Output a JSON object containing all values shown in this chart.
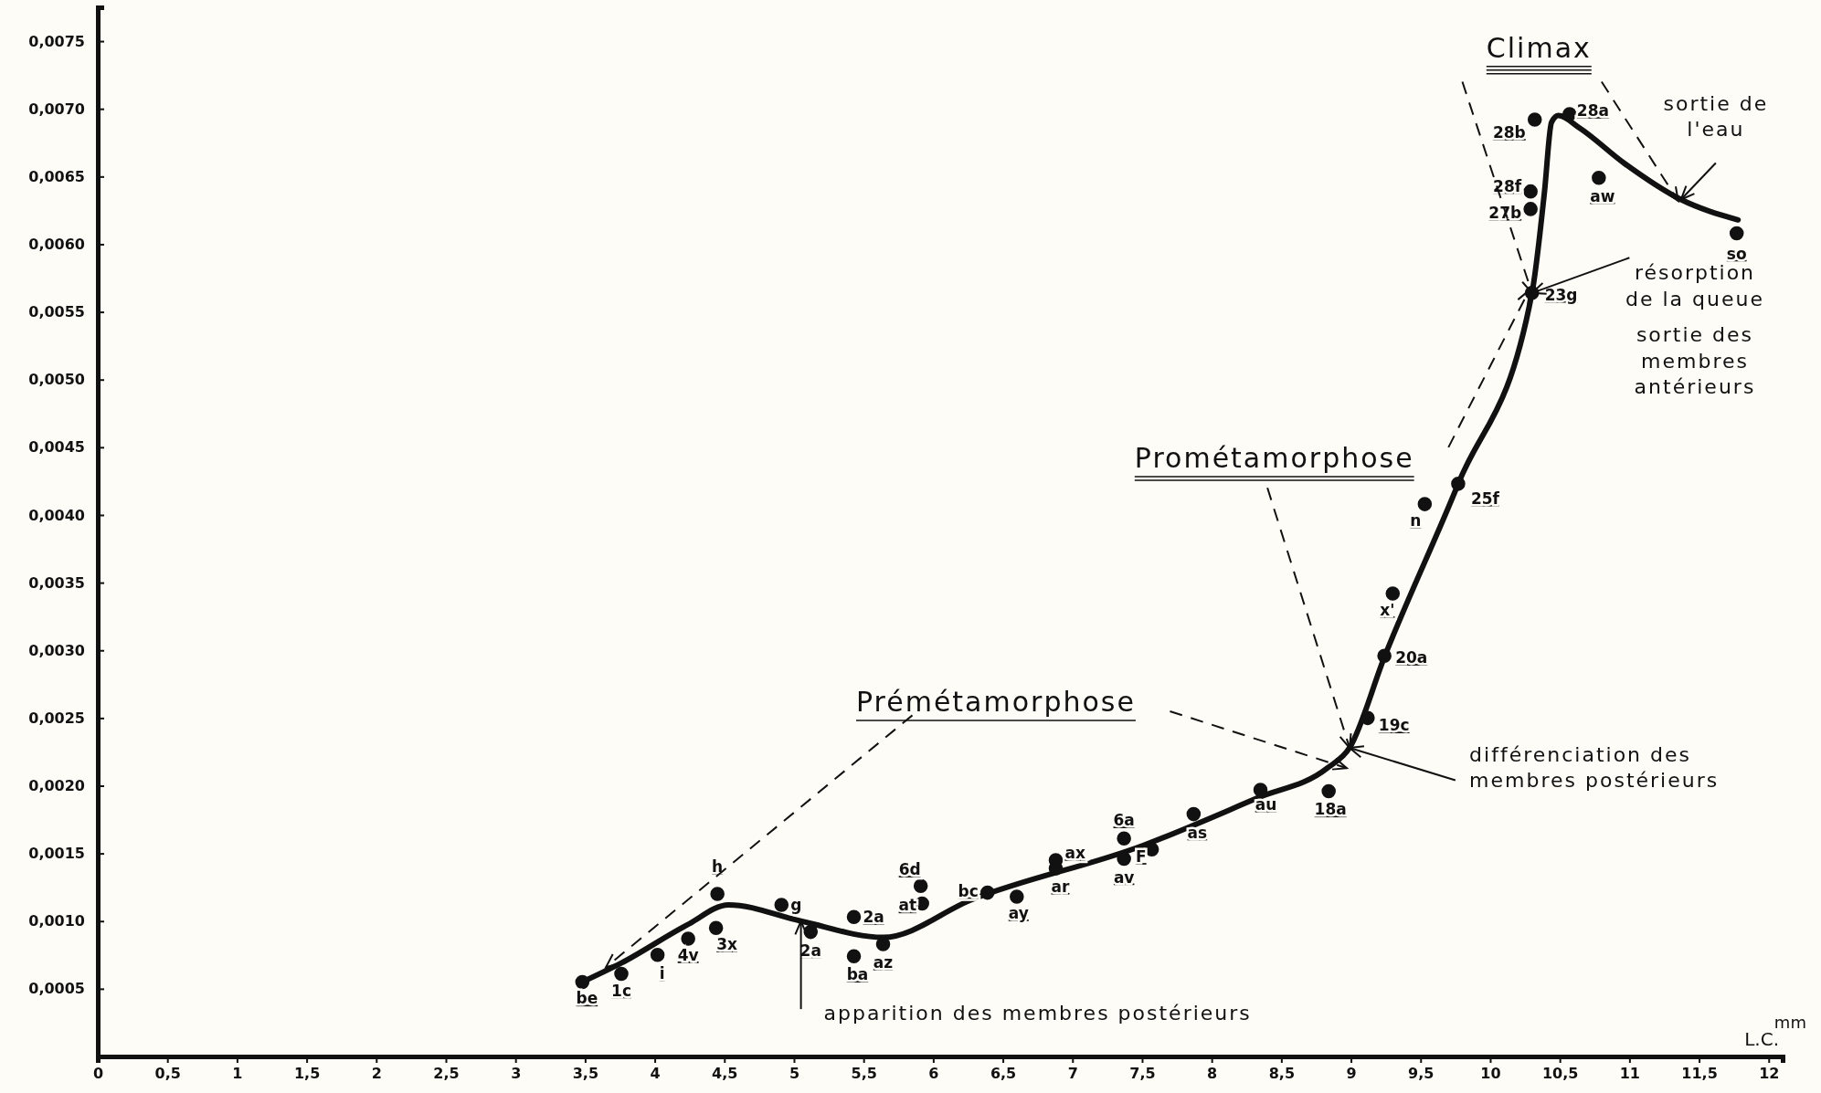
{
  "chart_data": {
    "type": "scatter",
    "xlabel": "L.C.",
    "xlim": [
      0,
      12.1
    ],
    "ylim": [
      0,
      0.00775
    ],
    "xticks": [
      0,
      {
        "value": 0.5,
        "label": "0,5"
      },
      1,
      {
        "value": 1.5,
        "label": "1,5"
      },
      2,
      {
        "value": 2.5,
        "label": "2,5"
      },
      3,
      {
        "value": 3.5,
        "label": "3,5"
      },
      4,
      {
        "value": 4.5,
        "label": "4,5"
      },
      5,
      {
        "value": 5.5,
        "label": "5,5"
      },
      6,
      {
        "value": 6.5,
        "label": "6,5"
      },
      7,
      {
        "value": 7.5,
        "label": "7,5"
      },
      8,
      {
        "value": 8.5,
        "label": "8,5"
      },
      9,
      {
        "value": 9.5,
        "label": "9,5"
      },
      10,
      {
        "value": 10.5,
        "label": "10,5"
      },
      11,
      {
        "value": 11.5,
        "label": "11,5"
      },
      12
    ],
    "yticks": [
      {
        "value": 0.0005,
        "label": "0,0005"
      },
      {
        "value": 0.001,
        "label": "0,0010"
      },
      {
        "value": 0.0015,
        "label": "0,0015"
      },
      {
        "value": 0.002,
        "label": "0,0020"
      },
      {
        "value": 0.0025,
        "label": "0,0025"
      },
      {
        "value": 0.003,
        "label": "0,0030"
      },
      {
        "value": 0.0035,
        "label": "0,0035"
      },
      {
        "value": 0.004,
        "label": "0,0040"
      },
      {
        "value": 0.0045,
        "label": "0,0045"
      },
      {
        "value": 0.005,
        "label": "0,0050"
      },
      {
        "value": 0.0055,
        "label": "0,0055"
      },
      {
        "value": 0.006,
        "label": "0,0060"
      },
      {
        "value": 0.0065,
        "label": "0,0065"
      },
      {
        "value": 0.007,
        "label": "0,0070"
      },
      {
        "value": 0.0075,
        "label": "0,0075"
      }
    ],
    "grid": false,
    "series": [
      {
        "type": "line",
        "color": "#111111",
        "marker": "none",
        "line_style": "solid",
        "x": [
          3.48,
          3.76,
          4.23,
          4.53,
          5.05,
          5.64,
          6.28,
          7.51,
          8.33,
          8.83,
          8.99,
          9.24,
          9.77,
          10.3,
          10.39,
          10.44,
          10.49,
          10.64,
          10.96,
          11.37,
          11.78
        ],
        "values": [
          0.00055,
          0.00069,
          0.00097,
          0.00112,
          0.001,
          0.00088,
          0.00116,
          0.00156,
          0.00191,
          0.00213,
          0.00228,
          0.00295,
          0.00423,
          0.00564,
          0.00639,
          0.0069,
          0.00695,
          0.00686,
          0.0066,
          0.00633,
          0.00618
        ]
      },
      {
        "type": "scatter",
        "color": "#111111",
        "marker": "circle",
        "x": [
          3.48,
          3.76,
          4.02,
          4.24,
          4.44,
          4.45,
          4.91,
          5.12,
          5.43,
          5.43,
          5.64,
          5.91,
          5.92,
          6.39,
          6.6,
          6.88,
          6.88,
          7.37,
          7.37,
          7.57,
          7.87,
          8.35,
          8.84,
          9.12,
          9.24,
          9.3,
          9.53,
          9.77,
          10.3,
          10.29,
          10.29,
          10.32,
          10.57,
          10.78,
          11.77
        ],
        "values": [
          0.00055,
          0.00061,
          0.00075,
          0.00087,
          0.00095,
          0.0012,
          0.00112,
          0.00092,
          0.00074,
          0.00103,
          0.00083,
          0.00126,
          0.00113,
          0.00121,
          0.00118,
          0.00145,
          0.00139,
          0.00161,
          0.00146,
          0.00153,
          0.00179,
          0.00197,
          0.00196,
          0.0025,
          0.00296,
          0.00342,
          0.00408,
          0.00423,
          0.00564,
          0.00626,
          0.00639,
          0.00692,
          0.00696,
          0.00649,
          0.00608
        ]
      }
    ],
    "annotations": [
      {
        "text": "Prémétamorphose",
        "x": 3.65,
        "y": 0.00066
      },
      {
        "text": "Prométamorphose",
        "x": 8.99,
        "y": 0.00228
      },
      {
        "text": "Climax",
        "x": 10.3,
        "y": 0.00564
      },
      {
        "text": "apparition des membres postérieurs",
        "x": 5.05,
        "y": 0.001
      },
      {
        "text": "différenciation des membres postérieurs",
        "x": 8.99,
        "y": 0.00228
      },
      {
        "text": "sortie de l'eau",
        "x": 11.37,
        "y": 0.00633
      },
      {
        "text": "résorption de la queue",
        "x": 10.3,
        "y": 0.00564
      },
      "sortie des membres antérieurs",
      "mm",
      {
        "text": "be",
        "x": 3.48,
        "y": 0.00055
      },
      {
        "text": "1c",
        "x": 3.76,
        "y": 0.00061
      },
      {
        "text": "i",
        "x": 4.02,
        "y": 0.00075
      },
      {
        "text": "4v",
        "x": 4.24,
        "y": 0.00087
      },
      {
        "text": "3x",
        "x": 4.44,
        "y": 0.00095
      },
      {
        "text": "h",
        "x": 4.45,
        "y": 0.0012
      },
      {
        "text": "g",
        "x": 4.91,
        "y": 0.00112
      },
      {
        "text": "2a",
        "x": 5.12,
        "y": 0.00092
      },
      {
        "text": "ba",
        "x": 5.43,
        "y": 0.00074
      },
      {
        "text": "2a",
        "x": 5.43,
        "y": 0.00103
      },
      {
        "text": "az",
        "x": 5.64,
        "y": 0.00083
      },
      {
        "text": "6d",
        "x": 5.91,
        "y": 0.00126
      },
      {
        "text": "at",
        "x": 5.92,
        "y": 0.00113
      },
      {
        "text": "bc",
        "x": 6.39,
        "y": 0.00121
      },
      {
        "text": "ay",
        "x": 6.6,
        "y": 0.00118
      },
      {
        "text": "ax",
        "x": 6.88,
        "y": 0.00145
      },
      {
        "text": "ar",
        "x": 6.88,
        "y": 0.00139
      },
      {
        "text": "6a",
        "x": 7.37,
        "y": 0.00161
      },
      {
        "text": "av",
        "x": 7.37,
        "y": 0.00146
      },
      {
        "text": "F",
        "x": 7.57,
        "y": 0.00153
      },
      {
        "text": "as",
        "x": 7.87,
        "y": 0.00179
      },
      {
        "text": "au",
        "x": 8.35,
        "y": 0.00197
      },
      {
        "text": "18a",
        "x": 8.84,
        "y": 0.00196
      },
      {
        "text": "19c",
        "x": 9.12,
        "y": 0.0025
      },
      {
        "text": "20a",
        "x": 9.24,
        "y": 0.00296
      },
      {
        "text": "x'",
        "x": 9.3,
        "y": 0.00342
      },
      {
        "text": "n",
        "x": 9.53,
        "y": 0.00408
      },
      {
        "text": "25f",
        "x": 9.77,
        "y": 0.00423
      },
      {
        "text": "23g",
        "x": 10.3,
        "y": 0.00564
      },
      {
        "text": "27b",
        "x": 10.29,
        "y": 0.00626
      },
      {
        "text": "28f",
        "x": 10.29,
        "y": 0.00639
      },
      {
        "text": "28b",
        "x": 10.32,
        "y": 0.00692
      },
      {
        "text": "28a",
        "x": 10.57,
        "y": 0.00696
      },
      {
        "text": "aw",
        "x": 10.78,
        "y": 0.00649
      },
      {
        "text": "so",
        "x": 11.77,
        "y": 0.00608
      }
    ]
  }
}
